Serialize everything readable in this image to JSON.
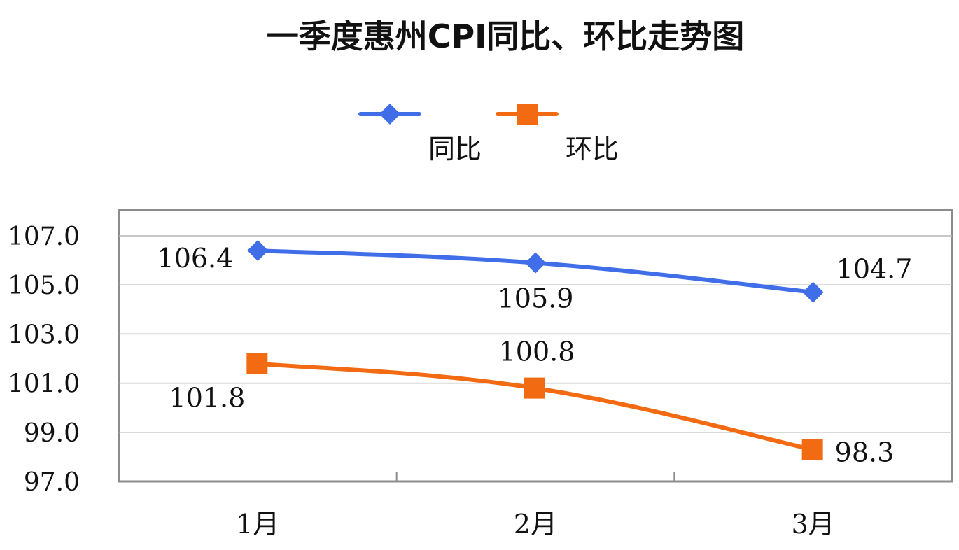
{
  "chart_data": {
    "type": "line",
    "title": "一季度惠州CPI同比、环比走势图",
    "categories": [
      "1月",
      "2月",
      "3月"
    ],
    "series": [
      {
        "name": "同比",
        "values": [
          106.4,
          105.9,
          104.7
        ],
        "color": "#3f6ee8",
        "marker": "diamond",
        "labels": [
          "106.4",
          "105.9",
          "104.7"
        ]
      },
      {
        "name": "环比",
        "values": [
          101.8,
          100.8,
          98.3
        ],
        "color": "#f26b12",
        "marker": "square",
        "labels": [
          "101.8",
          "100.8",
          "98.3"
        ]
      }
    ],
    "ylim": [
      97.0,
      107.0
    ],
    "yticks": [
      "97.0",
      "99.0",
      "101.0",
      "103.0",
      "105.0",
      "107.0"
    ],
    "xlabel": "",
    "ylabel": "",
    "grid": true,
    "legend": "top-center"
  }
}
